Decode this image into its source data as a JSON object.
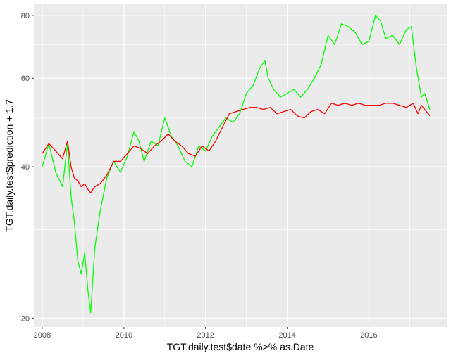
{
  "chart_data": {
    "type": "line",
    "title": "",
    "xlabel": "TGT.daily.test$date %>% as.Date",
    "ylabel": "TGT.daily.test$prediction + 1.7",
    "y_scale": "log",
    "xlim": [
      "2007-10-18",
      "2017-11-28"
    ],
    "ylim": [
      19.2,
      84.2
    ],
    "x_ticks": [
      {
        "value": "2008-01-01",
        "label": "2008"
      },
      {
        "value": "2010-01-01",
        "label": "2010"
      },
      {
        "value": "2012-01-01",
        "label": "2012"
      },
      {
        "value": "2014-01-01",
        "label": "2014"
      },
      {
        "value": "2016-01-01",
        "label": "2016"
      }
    ],
    "y_ticks": [
      {
        "value": 20,
        "label": "20"
      },
      {
        "value": 40,
        "label": "40"
      },
      {
        "value": 60,
        "label": "60"
      },
      {
        "value": 80,
        "label": "80"
      }
    ],
    "grid": true,
    "legend": "none",
    "colors": {
      "panel": "#ebebeb",
      "grid": "#ffffff",
      "actual": "#00ff00",
      "prediction": "#ff0000"
    },
    "series": [
      {
        "color": "#00ff00",
        "x": [
          "2008-01-01",
          "2008-03-01",
          "2008-05-01",
          "2008-07-01",
          "2008-08-15",
          "2008-09-15",
          "2008-10-15",
          "2008-11-15",
          "2008-12-15",
          "2009-01-15",
          "2009-02-15",
          "2009-03-10",
          "2009-04-15",
          "2009-06-01",
          "2009-08-01",
          "2009-10-01",
          "2009-12-01",
          "2010-02-01",
          "2010-04-01",
          "2010-05-15",
          "2010-07-01",
          "2010-09-01",
          "2010-11-01",
          "2011-01-01",
          "2011-03-01",
          "2011-05-01",
          "2011-07-01",
          "2011-09-01",
          "2011-11-01",
          "2012-01-01",
          "2012-03-01",
          "2012-05-01",
          "2012-07-01",
          "2012-09-01",
          "2012-11-01",
          "2013-01-01",
          "2013-03-01",
          "2013-05-01",
          "2013-06-15",
          "2013-07-15",
          "2013-09-01",
          "2013-11-01",
          "2014-01-01",
          "2014-03-01",
          "2014-05-01",
          "2014-07-01",
          "2014-09-01",
          "2014-11-01",
          "2015-01-01",
          "2015-03-01",
          "2015-05-01",
          "2015-07-01",
          "2015-09-01",
          "2015-11-01",
          "2016-01-01",
          "2016-03-01",
          "2016-04-15",
          "2016-06-01",
          "2016-08-01",
          "2016-10-01",
          "2016-12-01",
          "2017-01-15",
          "2017-03-01",
          "2017-04-15",
          "2017-05-15",
          "2017-06-30"
        ],
        "y": [
          40.0,
          44.5,
          39.0,
          36.5,
          44.5,
          35.0,
          31.0,
          26.0,
          24.5,
          27.0,
          22.5,
          20.5,
          27.5,
          32.5,
          38.0,
          41.0,
          39.0,
          42.0,
          47.0,
          45.0,
          41.0,
          45.0,
          44.0,
          50.0,
          46.0,
          44.0,
          41.0,
          40.0,
          44.0,
          43.0,
          46.0,
          48.0,
          50.0,
          49.0,
          51.0,
          56.0,
          58.0,
          63.0,
          65.0,
          60.0,
          57.0,
          55.0,
          56.0,
          57.0,
          55.0,
          57.0,
          60.0,
          64.0,
          73.0,
          70.0,
          77.0,
          76.0,
          74.0,
          70.0,
          71.0,
          80.0,
          78.0,
          72.0,
          73.0,
          70.0,
          75.0,
          76.0,
          63.0,
          55.0,
          56.0,
          52.0
        ]
      },
      {
        "color": "#ff0000",
        "x": [
          "2008-01-01",
          "2008-03-01",
          "2008-05-01",
          "2008-07-01",
          "2008-08-15",
          "2008-09-15",
          "2008-10-15",
          "2008-11-15",
          "2008-12-15",
          "2009-01-15",
          "2009-02-15",
          "2009-03-10",
          "2009-04-15",
          "2009-06-01",
          "2009-08-01",
          "2009-10-01",
          "2009-12-01",
          "2010-02-01",
          "2010-04-01",
          "2010-06-01",
          "2010-08-01",
          "2010-10-01",
          "2010-12-01",
          "2011-02-01",
          "2011-04-01",
          "2011-06-01",
          "2011-08-01",
          "2011-10-01",
          "2011-12-01",
          "2012-02-01",
          "2012-04-01",
          "2012-06-01",
          "2012-08-01",
          "2012-10-01",
          "2012-12-01",
          "2013-02-01",
          "2013-04-01",
          "2013-06-01",
          "2013-08-01",
          "2013-10-01",
          "2013-12-01",
          "2014-02-01",
          "2014-04-01",
          "2014-06-01",
          "2014-08-01",
          "2014-10-01",
          "2014-12-01",
          "2015-02-01",
          "2015-04-01",
          "2015-06-01",
          "2015-08-01",
          "2015-10-01",
          "2015-12-01",
          "2016-02-01",
          "2016-04-01",
          "2016-06-01",
          "2016-08-01",
          "2016-10-01",
          "2016-12-01",
          "2017-02-01",
          "2017-03-15",
          "2017-04-15",
          "2017-05-15",
          "2017-06-30"
        ],
        "y": [
          42.5,
          44.5,
          43.0,
          41.5,
          45.0,
          40.0,
          38.0,
          37.5,
          36.5,
          37.0,
          36.0,
          35.5,
          36.5,
          37.0,
          38.5,
          41.0,
          41.0,
          42.5,
          44.0,
          43.5,
          42.5,
          44.0,
          45.0,
          46.5,
          45.0,
          44.0,
          42.5,
          42.0,
          44.0,
          43.0,
          45.0,
          48.0,
          51.0,
          51.5,
          52.0,
          52.5,
          52.5,
          52.0,
          52.5,
          51.0,
          51.5,
          52.0,
          50.5,
          50.0,
          51.5,
          52.0,
          51.0,
          53.5,
          53.0,
          53.5,
          53.0,
          53.5,
          53.0,
          53.0,
          53.0,
          53.5,
          53.5,
          53.0,
          52.5,
          53.5,
          51.0,
          53.0,
          52.0,
          50.5
        ]
      }
    ]
  }
}
